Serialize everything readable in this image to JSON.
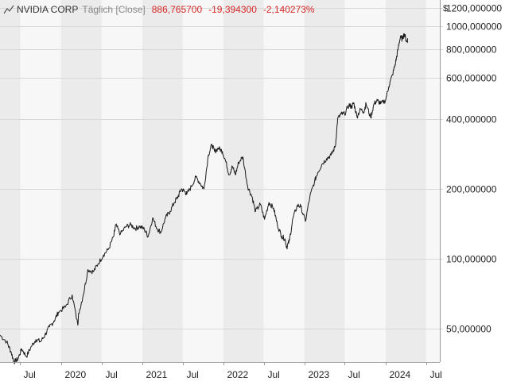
{
  "header": {
    "name": "NVIDIA CORP",
    "mode": "Täglich [Close]",
    "last": "886,765700",
    "change": "-19,394300",
    "change_pct": "-2,140273%"
  },
  "colors": {
    "line": "#1a1a1a",
    "negative": "#d62728",
    "band": "#ebebeb",
    "band_alt": "#f7f7f7",
    "grid": "#d8d8d8"
  },
  "chart_data": {
    "type": "line",
    "title": "NVIDIA CORP",
    "currency": "$",
    "y_scale": "log",
    "ylim": [
      36,
      1300
    ],
    "xlim": [
      "2019-04-01",
      "2024-09-01"
    ],
    "grid": true,
    "y_ticks": [
      {
        "value": 50,
        "label": "50,000000"
      },
      {
        "value": 100,
        "label": "100,000000"
      },
      {
        "value": 200,
        "label": "200,000000"
      },
      {
        "value": 400,
        "label": "400,000000"
      },
      {
        "value": 600,
        "label": "600,000000"
      },
      {
        "value": 800,
        "label": "800,000000"
      },
      {
        "value": 1000,
        "label": "1000,000000"
      },
      {
        "value": 1200,
        "label": "1200,000000"
      }
    ],
    "x_ticks": [
      {
        "date": "2019-07-01",
        "label": "Jul"
      },
      {
        "date": "2020-01-01",
        "label": "2020"
      },
      {
        "date": "2020-07-01",
        "label": "Jul"
      },
      {
        "date": "2021-01-01",
        "label": "2021"
      },
      {
        "date": "2021-07-01",
        "label": "Jul"
      },
      {
        "date": "2022-01-01",
        "label": "2022"
      },
      {
        "date": "2022-07-01",
        "label": "Jul"
      },
      {
        "date": "2023-01-01",
        "label": "2023"
      },
      {
        "date": "2023-07-01",
        "label": "Jul"
      },
      {
        "date": "2024-01-01",
        "label": "2024"
      },
      {
        "date": "2024-07-01",
        "label": "Jul"
      }
    ],
    "series": [
      {
        "x": [
          "2019-04-01",
          "2019-05-01",
          "2019-05-20",
          "2019-06-03",
          "2019-06-20",
          "2019-07-08",
          "2019-07-29",
          "2019-08-20",
          "2019-09-10",
          "2019-10-01",
          "2019-10-20",
          "2019-11-10",
          "2019-11-30",
          "2019-12-20",
          "2020-01-20",
          "2020-02-20",
          "2020-03-16",
          "2020-03-20",
          "2020-04-10",
          "2020-05-01",
          "2020-05-25",
          "2020-06-15",
          "2020-07-10",
          "2020-08-01",
          "2020-08-25",
          "2020-09-03",
          "2020-09-24",
          "2020-10-20",
          "2020-11-10",
          "2020-12-01",
          "2020-12-20",
          "2021-01-10",
          "2021-01-27",
          "2021-02-16",
          "2021-03-08",
          "2021-03-25",
          "2021-04-15",
          "2021-05-05",
          "2021-05-25",
          "2021-06-10",
          "2021-06-25",
          "2021-07-10",
          "2021-07-20",
          "2021-08-10",
          "2021-08-30",
          "2021-09-20",
          "2021-10-05",
          "2021-10-25",
          "2021-11-10",
          "2021-11-22",
          "2021-12-10",
          "2021-12-27",
          "2022-01-10",
          "2022-01-27",
          "2022-02-10",
          "2022-02-24",
          "2022-03-10",
          "2022-03-29",
          "2022-04-20",
          "2022-05-10",
          "2022-05-25",
          "2022-06-16",
          "2022-07-05",
          "2022-07-25",
          "2022-08-15",
          "2022-09-01",
          "2022-09-20",
          "2022-10-05",
          "2022-10-13",
          "2022-10-25",
          "2022-11-10",
          "2022-11-30",
          "2022-12-15",
          "2023-01-05",
          "2023-01-25",
          "2023-02-15",
          "2023-03-01",
          "2023-03-20",
          "2023-04-10",
          "2023-05-01",
          "2023-05-20",
          "2023-05-30",
          "2023-06-15",
          "2023-06-30",
          "2023-07-20",
          "2023-08-01",
          "2023-08-10",
          "2023-08-25",
          "2023-09-10",
          "2023-09-25",
          "2023-10-05",
          "2023-10-26",
          "2023-11-10",
          "2023-11-25",
          "2023-12-10",
          "2023-12-31",
          "2024-01-15",
          "2024-02-01",
          "2024-02-15",
          "2024-02-25",
          "2024-03-08",
          "2024-03-15",
          "2024-03-25",
          "2024-04-05",
          "2024-04-10"
        ],
        "values": [
          47,
          44,
          40,
          36,
          37,
          41,
          38,
          42,
          45,
          44,
          47,
          51,
          54,
          59,
          62,
          70,
          52,
          58,
          70,
          90,
          88,
          95,
          104,
          110,
          125,
          140,
          128,
          138,
          140,
          135,
          138,
          134,
          125,
          150,
          135,
          130,
          150,
          160,
          175,
          185,
          200,
          195,
          190,
          205,
          225,
          210,
          200,
          280,
          310,
          290,
          300,
          290,
          265,
          230,
          250,
          230,
          260,
          275,
          205,
          185,
          160,
          172,
          148,
          175,
          165,
          140,
          125,
          122,
          112,
          120,
          150,
          170,
          168,
          145,
          185,
          215,
          235,
          255,
          270,
          280,
          305,
          400,
          420,
          420,
          460,
          450,
          470,
          410,
          440,
          430,
          465,
          405,
          465,
          480,
          465,
          480,
          550,
          620,
          700,
          790,
          910,
          880,
          930,
          860,
          880
        ]
      }
    ]
  }
}
